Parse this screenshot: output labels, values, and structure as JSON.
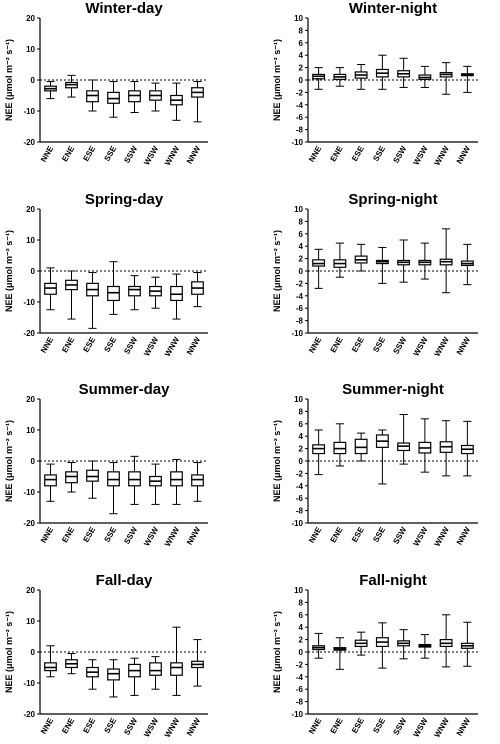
{
  "figure": {
    "ylabel": "NEE (μmol m⁻² s⁻¹)"
  },
  "chart_data": [
    {
      "type": "boxplot",
      "title": "Winter-day",
      "ylabel": "NEE (μmol m⁻² s⁻¹)",
      "ylim": [
        -20,
        20
      ],
      "yticks": [
        -20,
        -10,
        0,
        10,
        20
      ],
      "reference_line": 0,
      "categories": [
        "NNE",
        "ENE",
        "ESE",
        "SSE",
        "SSW",
        "WSW",
        "WNW",
        "NNW"
      ],
      "boxes": [
        {
          "min": -6,
          "q1": -3.5,
          "median": -2.8,
          "q3": -2,
          "max": -0.5
        },
        {
          "min": -5.5,
          "q1": -2.5,
          "median": -1.5,
          "q3": -0.8,
          "max": 1.5
        },
        {
          "min": -10,
          "q1": -7,
          "median": -5,
          "q3": -3.5,
          "max": 0
        },
        {
          "min": -12,
          "q1": -7.5,
          "median": -6,
          "q3": -4,
          "max": -0.5
        },
        {
          "min": -10.5,
          "q1": -7,
          "median": -5,
          "q3": -3.5,
          "max": -0.5
        },
        {
          "min": -10,
          "q1": -6.5,
          "median": -5,
          "q3": -3.5,
          "max": -1
        },
        {
          "min": -13,
          "q1": -8,
          "median": -6.5,
          "q3": -5,
          "max": -1
        },
        {
          "min": -13.5,
          "q1": -5.5,
          "median": -4,
          "q3": -2.5,
          "max": -0.5
        }
      ]
    },
    {
      "type": "boxplot",
      "title": "Winter-night",
      "ylabel": "NEE (μmol m⁻² s⁻¹)",
      "ylim": [
        -10,
        10
      ],
      "yticks": [
        -10,
        -8,
        -6,
        -4,
        -2,
        0,
        2,
        4,
        6,
        8,
        10
      ],
      "reference_line": 0,
      "categories": [
        "NNE",
        "ENE",
        "ESE",
        "SSE",
        "SSW",
        "WSW",
        "WNW",
        "NNW"
      ],
      "boxes": [
        {
          "min": -1.5,
          "q1": 0.2,
          "median": 0.6,
          "q3": 0.9,
          "max": 2.0
        },
        {
          "min": -1.0,
          "q1": 0.1,
          "median": 0.5,
          "q3": 0.9,
          "max": 2.0
        },
        {
          "min": -1.5,
          "q1": 0.3,
          "median": 0.8,
          "q3": 1.3,
          "max": 2.5
        },
        {
          "min": -1.5,
          "q1": 0.5,
          "median": 1.1,
          "q3": 1.7,
          "max": 4.0
        },
        {
          "min": -1.2,
          "q1": 0.5,
          "median": 1.0,
          "q3": 1.5,
          "max": 3.5
        },
        {
          "min": -1.2,
          "q1": 0.1,
          "median": 0.4,
          "q3": 0.8,
          "max": 2.2
        },
        {
          "min": -2.3,
          "q1": 0.5,
          "median": 0.9,
          "q3": 1.2,
          "max": 2.8
        },
        {
          "min": -2.0,
          "q1": 0.7,
          "median": 0.9,
          "q3": 1.0,
          "max": 2.2
        }
      ]
    },
    {
      "type": "boxplot",
      "title": "Spring-day",
      "ylabel": "NEE (μmol m⁻² s⁻¹)",
      "ylim": [
        -20,
        20
      ],
      "yticks": [
        -20,
        -10,
        0,
        10,
        20
      ],
      "reference_line": 0,
      "categories": [
        "NNE",
        "ENE",
        "ESE",
        "SSE",
        "SSW",
        "WSW",
        "WNW",
        "NNW"
      ],
      "boxes": [
        {
          "min": -12.5,
          "q1": -7.5,
          "median": -5.5,
          "q3": -4,
          "max": 1
        },
        {
          "min": -15.5,
          "q1": -6,
          "median": -4.5,
          "q3": -3,
          "max": 0
        },
        {
          "min": -18.5,
          "q1": -8,
          "median": -6,
          "q3": -4,
          "max": -0.5
        },
        {
          "min": -14,
          "q1": -9.5,
          "median": -7,
          "q3": -5,
          "max": 3
        },
        {
          "min": -12.5,
          "q1": -8,
          "median": -6,
          "q3": -5,
          "max": -1.5
        },
        {
          "min": -12,
          "q1": -8,
          "median": -6.5,
          "q3": -5,
          "max": -2
        },
        {
          "min": -15.5,
          "q1": -9.5,
          "median": -7.5,
          "q3": -5,
          "max": -1
        },
        {
          "min": -11.5,
          "q1": -7.5,
          "median": -5.5,
          "q3": -3.5,
          "max": -0.5
        }
      ]
    },
    {
      "type": "boxplot",
      "title": "Spring-night",
      "ylabel": "NEE (μmol m⁻² s⁻¹)",
      "ylim": [
        -10,
        10
      ],
      "yticks": [
        -10,
        -8,
        -6,
        -4,
        -2,
        0,
        2,
        4,
        6,
        8,
        10
      ],
      "reference_line": 0,
      "categories": [
        "NNE",
        "ENE",
        "ESE",
        "SSE",
        "SSW",
        "WSW",
        "WNW",
        "NNW"
      ],
      "boxes": [
        {
          "min": -2.8,
          "q1": 0.8,
          "median": 1.2,
          "q3": 1.8,
          "max": 3.5
        },
        {
          "min": -1.0,
          "q1": 0.6,
          "median": 1.2,
          "q3": 1.8,
          "max": 4.5
        },
        {
          "min": 0.0,
          "q1": 1.3,
          "median": 1.8,
          "q3": 2.4,
          "max": 4.3
        },
        {
          "min": -2.0,
          "q1": 1.2,
          "median": 1.5,
          "q3": 1.7,
          "max": 3.8
        },
        {
          "min": -1.8,
          "q1": 1.0,
          "median": 1.4,
          "q3": 1.7,
          "max": 5.0
        },
        {
          "min": -1.3,
          "q1": 1.0,
          "median": 1.4,
          "q3": 1.7,
          "max": 4.5
        },
        {
          "min": -3.5,
          "q1": 1.0,
          "median": 1.5,
          "q3": 1.9,
          "max": 6.8
        },
        {
          "min": -2.2,
          "q1": 0.9,
          "median": 1.2,
          "q3": 1.6,
          "max": 4.3
        }
      ]
    },
    {
      "type": "boxplot",
      "title": "Summer-day",
      "ylabel": "NEE (μmol m⁻² s⁻¹)",
      "ylim": [
        -20,
        20
      ],
      "yticks": [
        -20,
        -10,
        0,
        10,
        20
      ],
      "reference_line": 0,
      "categories": [
        "NNE",
        "ENE",
        "ESE",
        "SSE",
        "SSW",
        "WSW",
        "WNW",
        "NNW"
      ],
      "boxes": [
        {
          "min": -13,
          "q1": -8,
          "median": -6,
          "q3": -4.5,
          "max": -1
        },
        {
          "min": -10,
          "q1": -7,
          "median": -5,
          "q3": -3.5,
          "max": -0.5
        },
        {
          "min": -12,
          "q1": -6.5,
          "median": -5,
          "q3": -3,
          "max": 0
        },
        {
          "min": -17,
          "q1": -8,
          "median": -6,
          "q3": -3.5,
          "max": -0.5
        },
        {
          "min": -14,
          "q1": -8,
          "median": -6,
          "q3": -3.5,
          "max": 1.5
        },
        {
          "min": -14,
          "q1": -8,
          "median": -6.5,
          "q3": -5,
          "max": -1
        },
        {
          "min": -14,
          "q1": -8,
          "median": -6,
          "q3": -3.5,
          "max": 0.5
        },
        {
          "min": -13,
          "q1": -8,
          "median": -6,
          "q3": -4.5,
          "max": -0.5
        }
      ]
    },
    {
      "type": "boxplot",
      "title": "Summer-night",
      "ylabel": "NEE (μmol m⁻² s⁻¹)",
      "ylim": [
        -10,
        10
      ],
      "yticks": [
        -10,
        -8,
        -6,
        -4,
        -2,
        0,
        2,
        4,
        6,
        8,
        10
      ],
      "reference_line": 0,
      "categories": [
        "NNE",
        "ENE",
        "ESE",
        "SSE",
        "SSW",
        "WSW",
        "WNW",
        "NNW"
      ],
      "boxes": [
        {
          "min": -2.2,
          "q1": 1.2,
          "median": 2.0,
          "q3": 2.6,
          "max": 5.0
        },
        {
          "min": -0.8,
          "q1": 1.2,
          "median": 2.0,
          "q3": 3.0,
          "max": 6.0
        },
        {
          "min": 0.0,
          "q1": 1.2,
          "median": 2.2,
          "q3": 3.5,
          "max": 4.5
        },
        {
          "min": -3.7,
          "q1": 2.2,
          "median": 3.2,
          "q3": 4.2,
          "max": 5.0
        },
        {
          "min": -0.5,
          "q1": 1.7,
          "median": 2.4,
          "q3": 2.9,
          "max": 7.5
        },
        {
          "min": -1.8,
          "q1": 1.3,
          "median": 2.1,
          "q3": 3.0,
          "max": 6.8
        },
        {
          "min": -2.4,
          "q1": 1.4,
          "median": 2.3,
          "q3": 3.1,
          "max": 6.5
        },
        {
          "min": -2.4,
          "q1": 1.2,
          "median": 1.9,
          "q3": 2.5,
          "max": 6.4
        }
      ]
    },
    {
      "type": "boxplot",
      "title": "Fall-day",
      "ylabel": "NEE (μmol m⁻² s⁻¹)",
      "ylim": [
        -20,
        20
      ],
      "yticks": [
        -20,
        -10,
        0,
        10,
        20
      ],
      "reference_line": 0,
      "categories": [
        "NNE",
        "ENE",
        "ESE",
        "SSE",
        "SSW",
        "WSW",
        "WNW",
        "NNW"
      ],
      "boxes": [
        {
          "min": -8,
          "q1": -6,
          "median": -5,
          "q3": -3.5,
          "max": 2
        },
        {
          "min": -7,
          "q1": -5,
          "median": -3.8,
          "q3": -2.5,
          "max": -0.5
        },
        {
          "min": -12,
          "q1": -8,
          "median": -6.5,
          "q3": -5,
          "max": -2.5
        },
        {
          "min": -14.5,
          "q1": -9,
          "median": -7,
          "q3": -5.5,
          "max": -2.5
        },
        {
          "min": -14,
          "q1": -8,
          "median": -6,
          "q3": -4,
          "max": -2
        },
        {
          "min": -12,
          "q1": -7.5,
          "median": -6,
          "q3": -3.5,
          "max": -1.5
        },
        {
          "min": -14,
          "q1": -7.5,
          "median": -5,
          "q3": -3.5,
          "max": 8
        },
        {
          "min": -11,
          "q1": -5,
          "median": -4,
          "q3": -3,
          "max": 4
        }
      ]
    },
    {
      "type": "boxplot",
      "title": "Fall-night",
      "ylabel": "NEE (μmol m⁻² s⁻¹)",
      "ylim": [
        -10,
        10
      ],
      "yticks": [
        -10,
        -8,
        -6,
        -4,
        -2,
        0,
        2,
        4,
        6,
        8,
        10
      ],
      "reference_line": 0,
      "categories": [
        "NNE",
        "ENE",
        "ESE",
        "SSE",
        "SSW",
        "WSW",
        "WNW",
        "NNW"
      ],
      "boxes": [
        {
          "min": -1.0,
          "q1": 0.4,
          "median": 0.7,
          "q3": 1.0,
          "max": 3.0
        },
        {
          "min": -2.8,
          "q1": 0.3,
          "median": 0.5,
          "q3": 0.7,
          "max": 2.3
        },
        {
          "min": -0.5,
          "q1": 0.9,
          "median": 1.4,
          "q3": 1.9,
          "max": 3.2
        },
        {
          "min": -2.6,
          "q1": 0.9,
          "median": 1.6,
          "q3": 2.3,
          "max": 4.7
        },
        {
          "min": -1.1,
          "q1": 1.0,
          "median": 1.4,
          "q3": 1.8,
          "max": 3.6
        },
        {
          "min": -1.0,
          "q1": 0.8,
          "median": 1.0,
          "q3": 1.2,
          "max": 2.8
        },
        {
          "min": -2.4,
          "q1": 0.9,
          "median": 1.4,
          "q3": 2.0,
          "max": 6.0
        },
        {
          "min": -2.3,
          "q1": 0.6,
          "median": 1.0,
          "q3": 1.4,
          "max": 4.8
        }
      ]
    }
  ]
}
